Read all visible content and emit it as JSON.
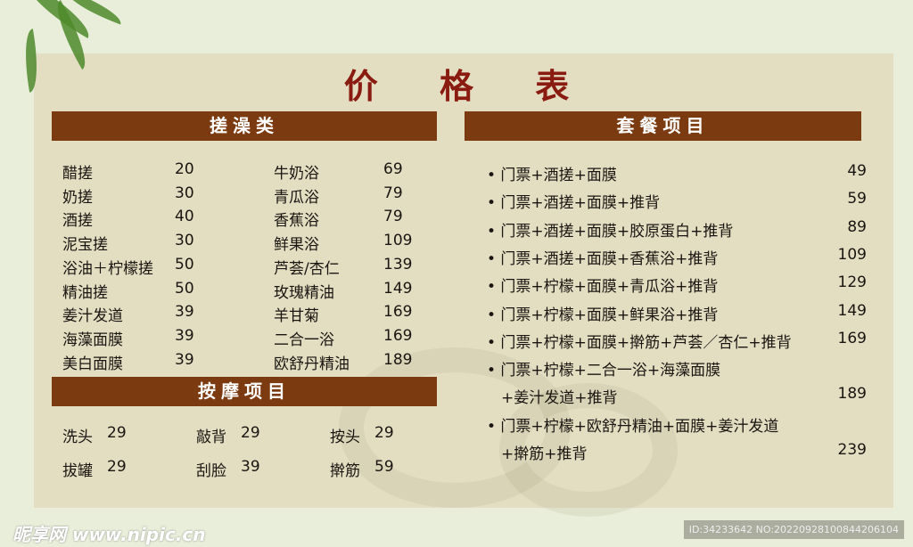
{
  "title": "价 格 表",
  "sections": {
    "scrub": "搓澡类",
    "massage": "按摩项目",
    "packages": "套餐项目"
  },
  "scrub_col1": [
    {
      "name": "醋搓",
      "price": "20"
    },
    {
      "name": "奶搓",
      "price": "30"
    },
    {
      "name": "酒搓",
      "price": "40"
    },
    {
      "name": "泥宝搓",
      "price": "30"
    },
    {
      "name": "浴油＋柠檬搓",
      "price": "50"
    },
    {
      "name": "精油搓",
      "price": "50"
    },
    {
      "name": "姜汁发道",
      "price": "39"
    },
    {
      "name": "海藻面膜",
      "price": "39"
    },
    {
      "name": "美白面膜",
      "price": "39"
    }
  ],
  "scrub_col2": [
    {
      "name": "牛奶浴",
      "price": "69"
    },
    {
      "name": "青瓜浴",
      "price": "79"
    },
    {
      "name": "香蕉浴",
      "price": "79"
    },
    {
      "name": "鲜果浴",
      "price": "109"
    },
    {
      "name": "芦荟/杏仁",
      "price": "139"
    },
    {
      "name": "玫瑰精油",
      "price": "149"
    },
    {
      "name": "羊甘菊",
      "price": "169"
    },
    {
      "name": "二合一浴",
      "price": "169"
    },
    {
      "name": "欧舒丹精油",
      "price": "189"
    }
  ],
  "massage": [
    {
      "name": "洗头",
      "price": "29"
    },
    {
      "name": "敲背",
      "price": "29"
    },
    {
      "name": "按头",
      "price": "29"
    },
    {
      "name": "拔罐",
      "price": "29"
    },
    {
      "name": "刮脸",
      "price": "39"
    },
    {
      "name": "擀筋",
      "price": "59"
    }
  ],
  "packages": [
    {
      "line": "• 门票+酒搓+面膜",
      "price": "49"
    },
    {
      "line": "• 门票+酒搓+面膜+推背",
      "price": "59"
    },
    {
      "line": "• 门票+酒搓+面膜+胶原蛋白+推背",
      "price": "89"
    },
    {
      "line": "• 门票+酒搓+面膜+香蕉浴+推背",
      "price": "109"
    },
    {
      "line": "• 门票+柠檬+面膜+青瓜浴+推背",
      "price": "129"
    },
    {
      "line": "• 门票+柠檬+面膜+鲜果浴+推背",
      "price": "149"
    },
    {
      "line": "• 门票+柠檬+面膜+擀筋+芦荟／杏仁+推背",
      "price": "169"
    },
    {
      "line": "• 门票+柠檬+二合一浴+海藻面膜",
      "line2": "+姜汁发道+推背",
      "price": "189"
    },
    {
      "line": "• 门票+柠檬+欧舒丹精油+面膜+姜汁发道",
      "line2": "+擀筋+推背",
      "price": "239"
    }
  ],
  "watermark": "昵享网 www.nipic.cn",
  "image_id": "ID:34233642 NO:20220928100844206104",
  "colors": {
    "bar": "#7b3a10",
    "title": "#8a1b10",
    "panel": "#e3ddc2",
    "background": "#e8eed9"
  }
}
